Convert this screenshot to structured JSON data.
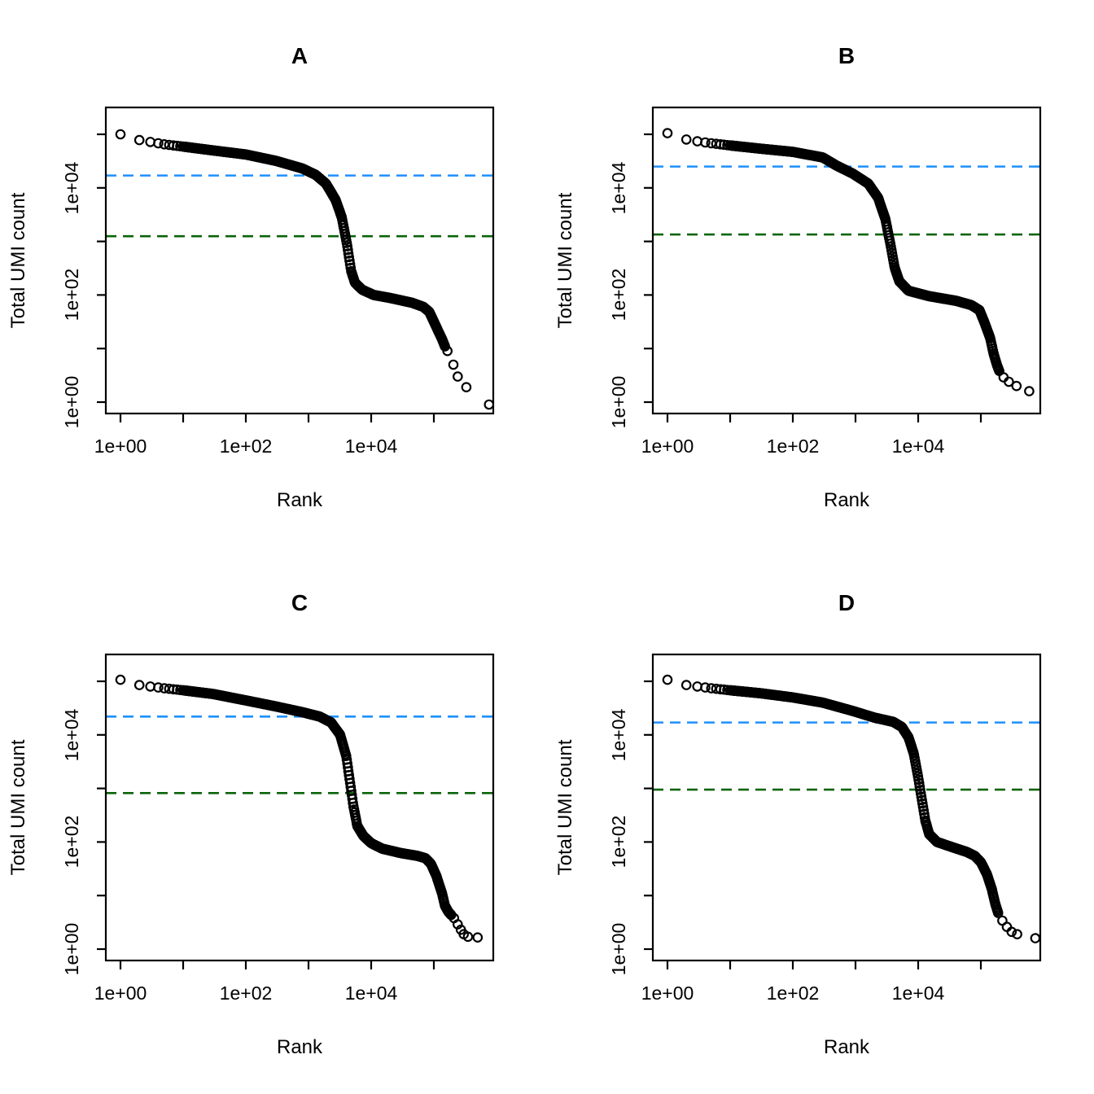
{
  "axes": {
    "xlabel": "Rank",
    "ylabel": "Total UMI count",
    "x_scale": "log10",
    "y_scale": "log10",
    "x_tick_labels": [
      "1e+00",
      "1e+02",
      "1e+04"
    ],
    "y_tick_labels": [
      "1e+00",
      "1e+02",
      "1e+04"
    ],
    "x_tick_decades": [
      0,
      1,
      2,
      3,
      4,
      5
    ],
    "y_tick_decades": [
      0,
      1,
      2,
      3,
      4,
      5
    ],
    "grid": false,
    "legend": "none"
  },
  "colors": {
    "knee_line": "#1E90FF",
    "inflection_line": "#0A640A",
    "points": "#000000",
    "frame": "#000000",
    "background": "#FFFFFF"
  },
  "chart_data": [
    {
      "panel": "A",
      "title": "A",
      "type": "scatter",
      "marker": "open-circle",
      "xlabel": "Rank",
      "ylabel": "Total UMI count",
      "x_range_log10": [
        -0.23,
        5.93
      ],
      "y_range_log10": [
        -0.24,
        5.5
      ],
      "knee_threshold": 17000,
      "inflection_threshold": 1250,
      "points": [
        [
          1,
          100000
        ],
        [
          2,
          78000
        ],
        [
          3,
          72000
        ],
        [
          5,
          65000
        ],
        [
          10,
          59000
        ],
        [
          30,
          50000
        ],
        [
          100,
          42000
        ],
        [
          300,
          32000
        ],
        [
          800,
          23000
        ],
        [
          1300,
          17500
        ],
        [
          1900,
          12000
        ],
        [
          2700,
          6000
        ],
        [
          3400,
          2800
        ],
        [
          4100,
          900
        ],
        [
          4800,
          280
        ],
        [
          5500,
          170
        ],
        [
          7200,
          125
        ],
        [
          11000,
          100
        ],
        [
          20000,
          88
        ],
        [
          44000,
          72
        ],
        [
          68000,
          60
        ],
        [
          85000,
          48
        ],
        [
          110000,
          25
        ],
        [
          135000,
          15
        ],
        [
          150000,
          11
        ],
        [
          165000,
          9
        ],
        [
          205000,
          5
        ],
        [
          240000,
          3
        ],
        [
          330000,
          1.9
        ],
        [
          760000,
          0.9
        ]
      ],
      "head_ranks": [
        1,
        2,
        3,
        4,
        5,
        6,
        7,
        8,
        9
      ],
      "band_from": 10,
      "band_to": 150000,
      "tail_ranks": [
        165000,
        205000,
        240000,
        330000,
        760000
      ]
    },
    {
      "panel": "B",
      "title": "B",
      "type": "scatter",
      "marker": "open-circle",
      "xlabel": "Rank",
      "ylabel": "Total UMI count",
      "x_range_log10": [
        -0.23,
        5.93
      ],
      "y_range_log10": [
        -0.24,
        5.5
      ],
      "knee_threshold": 25000,
      "inflection_threshold": 1350,
      "points": [
        [
          1,
          105000
        ],
        [
          2,
          80000
        ],
        [
          3,
          74000
        ],
        [
          5,
          68000
        ],
        [
          10,
          62000
        ],
        [
          30,
          54000
        ],
        [
          100,
          47000
        ],
        [
          300,
          37000
        ],
        [
          500,
          26000
        ],
        [
          900,
          18500
        ],
        [
          1600,
          12000
        ],
        [
          2300,
          6500
        ],
        [
          3000,
          2600
        ],
        [
          3600,
          900
        ],
        [
          4200,
          330
        ],
        [
          5000,
          180
        ],
        [
          7000,
          120
        ],
        [
          15000,
          95
        ],
        [
          40000,
          78
        ],
        [
          70000,
          65
        ],
        [
          95000,
          52
        ],
        [
          115000,
          30
        ],
        [
          140000,
          16
        ],
        [
          160000,
          8
        ],
        [
          180000,
          5
        ],
        [
          200000,
          3.6
        ],
        [
          230000,
          2.9
        ],
        [
          280000,
          2.4
        ],
        [
          370000,
          2.0
        ],
        [
          590000,
          1.6
        ]
      ],
      "head_ranks": [
        1,
        2,
        3,
        4,
        5,
        6,
        7,
        8,
        9
      ],
      "band_from": 10,
      "band_to": 200000,
      "tail_ranks": [
        230000,
        280000,
        370000,
        590000
      ]
    },
    {
      "panel": "C",
      "title": "C",
      "type": "scatter",
      "marker": "open-circle",
      "xlabel": "Rank",
      "ylabel": "Total UMI count",
      "x_range_log10": [
        -0.23,
        5.93
      ],
      "y_range_log10": [
        -0.24,
        5.5
      ],
      "knee_threshold": 22000,
      "inflection_threshold": 820,
      "points": [
        [
          1,
          107000
        ],
        [
          2,
          85000
        ],
        [
          3,
          80000
        ],
        [
          5,
          74000
        ],
        [
          10,
          68000
        ],
        [
          30,
          58000
        ],
        [
          100,
          44000
        ],
        [
          300,
          34000
        ],
        [
          800,
          26500
        ],
        [
          1500,
          22000
        ],
        [
          2300,
          17000
        ],
        [
          3200,
          10000
        ],
        [
          4000,
          4000
        ],
        [
          4600,
          1300
        ],
        [
          5200,
          470
        ],
        [
          6000,
          200
        ],
        [
          7500,
          130
        ],
        [
          10000,
          95
        ],
        [
          15000,
          75
        ],
        [
          30000,
          62
        ],
        [
          55000,
          55
        ],
        [
          73000,
          50
        ],
        [
          90000,
          39
        ],
        [
          110000,
          23
        ],
        [
          135000,
          11
        ],
        [
          150000,
          6.5
        ],
        [
          170000,
          5
        ],
        [
          190000,
          4.3
        ],
        [
          210000,
          3.8
        ],
        [
          240000,
          2.9
        ],
        [
          270000,
          2.3
        ],
        [
          300000,
          1.9
        ],
        [
          350000,
          1.7
        ],
        [
          500000,
          1.65
        ]
      ],
      "head_ranks": [
        1,
        2,
        3,
        4,
        5,
        6,
        7,
        8,
        9
      ],
      "band_from": 10,
      "band_to": 190000,
      "tail_ranks": [
        210000,
        240000,
        270000,
        300000,
        350000,
        500000
      ]
    },
    {
      "panel": "D",
      "title": "D",
      "type": "scatter",
      "marker": "open-circle",
      "xlabel": "Rank",
      "ylabel": "Total UMI count",
      "x_range_log10": [
        -0.23,
        5.93
      ],
      "y_range_log10": [
        -0.24,
        5.5
      ],
      "knee_threshold": 17000,
      "inflection_threshold": 950,
      "points": [
        [
          1,
          107000
        ],
        [
          2,
          85000
        ],
        [
          3,
          80000
        ],
        [
          5,
          74000
        ],
        [
          10,
          68000
        ],
        [
          30,
          60000
        ],
        [
          100,
          50000
        ],
        [
          300,
          40000
        ],
        [
          900,
          28000
        ],
        [
          2000,
          21000
        ],
        [
          4000,
          17500
        ],
        [
          5500,
          14000
        ],
        [
          7000,
          9000
        ],
        [
          8500,
          4500
        ],
        [
          10000,
          1600
        ],
        [
          11500,
          600
        ],
        [
          13000,
          250
        ],
        [
          15000,
          140
        ],
        [
          20000,
          100
        ],
        [
          35000,
          80
        ],
        [
          60000,
          65
        ],
        [
          80000,
          55
        ],
        [
          100000,
          42
        ],
        [
          125000,
          25
        ],
        [
          150000,
          13
        ],
        [
          170000,
          7
        ],
        [
          190000,
          4.6
        ],
        [
          220000,
          3.4
        ],
        [
          260000,
          2.6
        ],
        [
          310000,
          2.1
        ],
        [
          380000,
          1.9
        ],
        [
          740000,
          1.6
        ]
      ],
      "head_ranks": [
        1,
        2,
        3,
        4,
        5,
        6,
        7,
        8,
        9
      ],
      "band_from": 10,
      "band_to": 190000,
      "tail_ranks": [
        220000,
        260000,
        310000,
        380000,
        740000
      ]
    }
  ]
}
